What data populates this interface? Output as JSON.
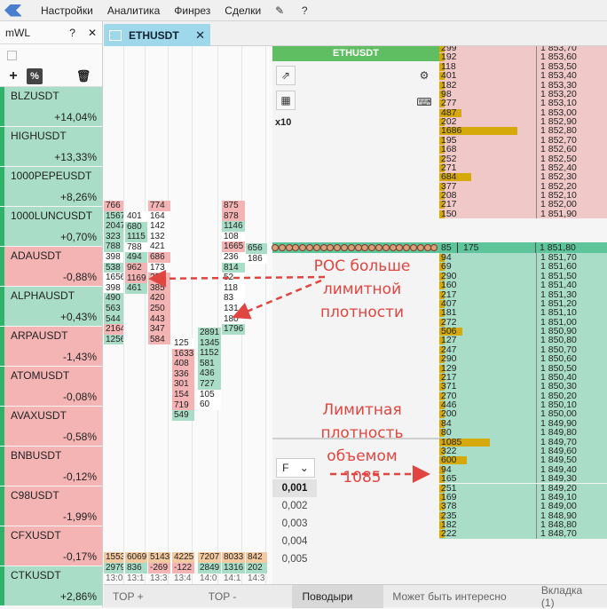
{
  "menu": {
    "items": [
      "Настройки",
      "Аналитика",
      "Финрез",
      "Сделки"
    ]
  },
  "watchlist": {
    "title": "mWL",
    "items": [
      {
        "symbol": "BLZUSDT",
        "change": "+14,04%",
        "dir": "up"
      },
      {
        "symbol": "HIGHUSDT",
        "change": "+13,33%",
        "dir": "up"
      },
      {
        "symbol": "1000PEPEUSDT",
        "change": "+8,26%",
        "dir": "up"
      },
      {
        "symbol": "1000LUNCUSDT",
        "change": "+0,70%",
        "dir": "up"
      },
      {
        "symbol": "ADAUSDT",
        "change": "-0,88%",
        "dir": "dn"
      },
      {
        "symbol": "ALPHAUSDT",
        "change": "+0,43%",
        "dir": "up"
      },
      {
        "symbol": "ARPAUSDT",
        "change": "-1,43%",
        "dir": "dn"
      },
      {
        "symbol": "ATOMUSDT",
        "change": "-0,08%",
        "dir": "dn"
      },
      {
        "symbol": "AVAXUSDT",
        "change": "-0,58%",
        "dir": "dn"
      },
      {
        "symbol": "BNBUSDT",
        "change": "-0,12%",
        "dir": "dn"
      },
      {
        "symbol": "C98USDT",
        "change": "-1,99%",
        "dir": "dn"
      },
      {
        "symbol": "CFXUSDT",
        "change": "-0,17%",
        "dir": "dn"
      },
      {
        "symbol": "CTKUSDT",
        "change": "+2,86%",
        "dir": "up"
      }
    ]
  },
  "tab": {
    "label": "ETHUSDT"
  },
  "orderbook": {
    "title": "ETHUSDT",
    "multiplier": "x10",
    "select": "F",
    "ticks": [
      "0,001",
      "0,002",
      "0,003",
      "0,004",
      "0,005"
    ],
    "selected_tick": "0,001",
    "mid": {
      "volume": "85",
      "volume2": "175",
      "price": "1 851,80"
    }
  },
  "ladder": {
    "asks": [
      [
        "299",
        "1 853,70"
      ],
      [
        "192",
        "1 853,60"
      ],
      [
        "118",
        "1 853,50"
      ],
      [
        "401",
        "1 853,40"
      ],
      [
        "182",
        "1 853,30"
      ],
      [
        "98",
        "1 853,20"
      ],
      [
        "277",
        "1 853,10"
      ],
      [
        "487",
        "1 853,00"
      ],
      [
        "202",
        "1 852,90"
      ],
      [
        "1686",
        "1 852,80"
      ],
      [
        "195",
        "1 852,70"
      ],
      [
        "168",
        "1 852,60"
      ],
      [
        "252",
        "1 852,50"
      ],
      [
        "271",
        "1 852,40"
      ],
      [
        "684",
        "1 852,30"
      ],
      [
        "377",
        "1 852,20"
      ],
      [
        "208",
        "1 852,10"
      ],
      [
        "217",
        "1 852,00"
      ],
      [
        "150",
        "1 851,90"
      ]
    ],
    "bids": [
      [
        "94",
        "1 851,70"
      ],
      [
        "69",
        "1 851,60"
      ],
      [
        "290",
        "1 851,50"
      ],
      [
        "160",
        "1 851,40"
      ],
      [
        "217",
        "1 851,30"
      ],
      [
        "407",
        "1 851,20"
      ],
      [
        "181",
        "1 851,10"
      ],
      [
        "272",
        "1 851,00"
      ],
      [
        "506",
        "1 850,90"
      ],
      [
        "127",
        "1 850,80"
      ],
      [
        "247",
        "1 850,70"
      ],
      [
        "290",
        "1 850,60"
      ],
      [
        "129",
        "1 850,50"
      ],
      [
        "217",
        "1 850,40"
      ],
      [
        "371",
        "1 850,30"
      ],
      [
        "270",
        "1 850,20"
      ],
      [
        "446",
        "1 850,10"
      ],
      [
        "200",
        "1 850,00"
      ],
      [
        "84",
        "1 849,90"
      ],
      [
        "80",
        "1 849,80"
      ],
      [
        "1085",
        "1 849,70"
      ],
      [
        "322",
        "1 849,60"
      ],
      [
        "600",
        "1 849,50"
      ],
      [
        "94",
        "1 849,40"
      ],
      [
        "165",
        "1 849,30"
      ],
      [
        "251",
        "1 849,20"
      ],
      [
        "169",
        "1 849,10"
      ],
      [
        "378",
        "1 849,00"
      ],
      [
        "235",
        "1 848,90"
      ],
      [
        "182",
        "1 848,80"
      ],
      [
        "222",
        "1 848,70"
      ]
    ]
  },
  "clusters": {
    "col1": [
      [
        "766",
        "r"
      ],
      [
        "1567",
        "g"
      ],
      [
        "2047",
        "g"
      ],
      [
        "323",
        "g"
      ],
      [
        "788",
        "g"
      ],
      [
        "398",
        "w"
      ],
      [
        "538",
        "g"
      ],
      [
        "1656",
        "w"
      ],
      [
        "398",
        "w"
      ],
      [
        "490",
        "g"
      ],
      [
        "563",
        "g"
      ],
      [
        "544",
        "g"
      ],
      [
        "2164",
        "r"
      ],
      [
        "1256",
        "g"
      ]
    ],
    "col2": [
      [
        "401",
        "w"
      ],
      [
        "680",
        "g"
      ],
      [
        "1115",
        "g"
      ],
      [
        "788",
        "w"
      ],
      [
        "494",
        "g"
      ],
      [
        "962",
        "r"
      ],
      [
        "1169",
        "r"
      ],
      [
        "461",
        "g"
      ]
    ],
    "col3": [
      [
        "774",
        "r"
      ],
      [
        "164",
        "w"
      ],
      [
        "142",
        "w"
      ],
      [
        "132",
        "w"
      ],
      [
        "421",
        "w"
      ],
      [
        "686",
        "r"
      ],
      [
        "173",
        "w"
      ],
      [
        "222",
        "r"
      ],
      [
        "385",
        "r"
      ],
      [
        "420",
        "r"
      ],
      [
        "250",
        "r"
      ],
      [
        "443",
        "r"
      ],
      [
        "347",
        "r"
      ],
      [
        "584",
        "r"
      ]
    ],
    "col4": [
      [
        "125",
        "w"
      ],
      [
        "1633",
        "r"
      ],
      [
        "408",
        "r"
      ],
      [
        "336",
        "r"
      ],
      [
        "301",
        "r"
      ],
      [
        "154",
        "r"
      ],
      [
        "719",
        "r"
      ],
      [
        "549",
        "g"
      ]
    ],
    "col5": [
      [
        "2891",
        "g"
      ],
      [
        "1345",
        "g"
      ],
      [
        "1152",
        "g"
      ],
      [
        "581",
        "g"
      ],
      [
        "436",
        "g"
      ],
      [
        "727",
        "g"
      ],
      [
        "105",
        "w"
      ],
      [
        "60",
        "w"
      ]
    ],
    "col6": [
      [
        "875",
        "r"
      ],
      [
        "878",
        "r"
      ],
      [
        "1146",
        "g"
      ],
      [
        "108",
        "w"
      ],
      [
        "1665",
        "r"
      ],
      [
        "236",
        "w"
      ],
      [
        "814",
        "g"
      ],
      [
        "52",
        "w"
      ],
      [
        "118",
        "w"
      ],
      [
        "83",
        "w"
      ],
      [
        "131",
        "w"
      ],
      [
        "180",
        "w"
      ],
      [
        "1796",
        "g"
      ]
    ],
    "col7": [
      [
        "656",
        "g"
      ],
      [
        "186",
        "w"
      ]
    ],
    "totals_top": [
      "1553",
      "6069",
      "5143",
      "4225",
      "7207",
      "8033",
      "842"
    ],
    "totals_bottom": [
      "2979",
      "836",
      "-269",
      "-122",
      "2849",
      "1316",
      "202"
    ],
    "times": [
      "13:0",
      "13:1",
      "13:3",
      "13:4",
      "14:0",
      "14:1",
      "14:3"
    ]
  },
  "annotations": {
    "poc": [
      "POC больше",
      "лимитной",
      "плотности"
    ],
    "limit": [
      "Лимитная",
      "плотность",
      "объемом 1085"
    ]
  },
  "bottom_tabs": [
    "TOP +",
    "TOP -",
    "Поводыри",
    "Может быть интересно",
    "Вкладка (1)"
  ],
  "colors": {
    "bid": "#a9ddc7",
    "ask": "#f4b4b4",
    "bar": "#d6a90a",
    "accent": "#5fbe62"
  }
}
